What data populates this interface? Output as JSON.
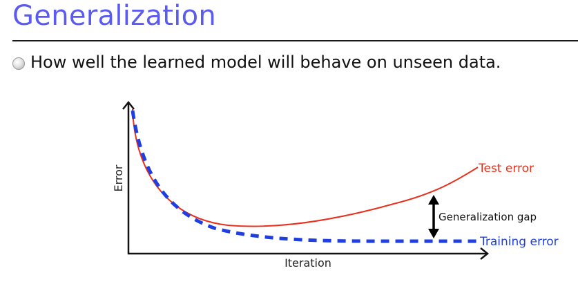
{
  "slide": {
    "title": "Generalization",
    "bullet": "How well the learned model will behave on unseen data."
  },
  "figure": {
    "y_axis_label": "Error",
    "x_axis_label": "Iteration",
    "test_curve_label": "Test error",
    "training_curve_label": "Training error",
    "gap_label": "Generalization gap",
    "colors": {
      "test": "#e8301c",
      "training": "#1f3fe0",
      "axis": "#111111",
      "title": "#5b5bf0"
    }
  }
}
